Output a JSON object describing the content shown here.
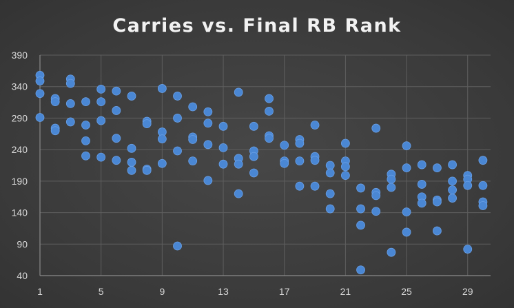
{
  "chart_data": {
    "type": "scatter",
    "title": "Carries vs. Final RB Rank",
    "xlabel": "",
    "ylabel": "",
    "xlim": [
      1,
      30.5
    ],
    "ylim": [
      40,
      390
    ],
    "x_ticks": [
      1,
      5,
      9,
      13,
      17,
      21,
      25,
      29
    ],
    "y_ticks": [
      40,
      90,
      140,
      190,
      240,
      290,
      340,
      390
    ],
    "grid": "horizontal and vertical",
    "legend": "none",
    "marker_color": "#4a87d4",
    "series": [
      {
        "points": [
          [
            1,
            358
          ],
          [
            1,
            349
          ],
          [
            1,
            329
          ],
          [
            1,
            291
          ],
          [
            2,
            321
          ],
          [
            2,
            316
          ],
          [
            2,
            274
          ],
          [
            2,
            270
          ],
          [
            3,
            352
          ],
          [
            3,
            345
          ],
          [
            3,
            313
          ],
          [
            3,
            284
          ],
          [
            4,
            316
          ],
          [
            4,
            279
          ],
          [
            4,
            254
          ],
          [
            4,
            230
          ],
          [
            5,
            336
          ],
          [
            5,
            316
          ],
          [
            5,
            286
          ],
          [
            5,
            228
          ],
          [
            6,
            333
          ],
          [
            6,
            302
          ],
          [
            6,
            258
          ],
          [
            6,
            223
          ],
          [
            7,
            325
          ],
          [
            7,
            242
          ],
          [
            7,
            220
          ],
          [
            7,
            207
          ],
          [
            8,
            285
          ],
          [
            8,
            281
          ],
          [
            8,
            209
          ],
          [
            8,
            207
          ],
          [
            9,
            337
          ],
          [
            9,
            268
          ],
          [
            9,
            257
          ],
          [
            9,
            218
          ],
          [
            10,
            325
          ],
          [
            10,
            290
          ],
          [
            10,
            238
          ],
          [
            10,
            87
          ],
          [
            11,
            308
          ],
          [
            11,
            260
          ],
          [
            11,
            256
          ],
          [
            11,
            222
          ],
          [
            12,
            300
          ],
          [
            12,
            282
          ],
          [
            12,
            248
          ],
          [
            12,
            191
          ],
          [
            13,
            277
          ],
          [
            13,
            243
          ],
          [
            13,
            217
          ],
          [
            14,
            331
          ],
          [
            14,
            226
          ],
          [
            14,
            217
          ],
          [
            14,
            170
          ],
          [
            15,
            277
          ],
          [
            15,
            238
          ],
          [
            15,
            229
          ],
          [
            15,
            203
          ],
          [
            16,
            321
          ],
          [
            16,
            301
          ],
          [
            16,
            262
          ],
          [
            16,
            258
          ],
          [
            17,
            247
          ],
          [
            17,
            222
          ],
          [
            17,
            218
          ],
          [
            18,
            256
          ],
          [
            18,
            250
          ],
          [
            18,
            222
          ],
          [
            18,
            182
          ],
          [
            19,
            279
          ],
          [
            19,
            229
          ],
          [
            19,
            223
          ],
          [
            19,
            182
          ],
          [
            20,
            215
          ],
          [
            20,
            203
          ],
          [
            20,
            170
          ],
          [
            20,
            146
          ],
          [
            21,
            250
          ],
          [
            21,
            222
          ],
          [
            21,
            213
          ],
          [
            21,
            199
          ],
          [
            22,
            179
          ],
          [
            22,
            146
          ],
          [
            22,
            120
          ],
          [
            22,
            49
          ],
          [
            23,
            274
          ],
          [
            23,
            172
          ],
          [
            23,
            167
          ],
          [
            23,
            142
          ],
          [
            24,
            201
          ],
          [
            24,
            193
          ],
          [
            24,
            180
          ],
          [
            24,
            77
          ],
          [
            25,
            246
          ],
          [
            25,
            211
          ],
          [
            25,
            141
          ],
          [
            25,
            109
          ],
          [
            26,
            216
          ],
          [
            26,
            185
          ],
          [
            26,
            165
          ],
          [
            26,
            155
          ],
          [
            27,
            211
          ],
          [
            27,
            160
          ],
          [
            27,
            157
          ],
          [
            27,
            111
          ],
          [
            28,
            216
          ],
          [
            28,
            190
          ],
          [
            28,
            176
          ],
          [
            28,
            163
          ],
          [
            29,
            199
          ],
          [
            29,
            193
          ],
          [
            29,
            183
          ],
          [
            29,
            82
          ],
          [
            30,
            223
          ],
          [
            30,
            183
          ],
          [
            30,
            157
          ],
          [
            30,
            151
          ]
        ]
      }
    ]
  }
}
